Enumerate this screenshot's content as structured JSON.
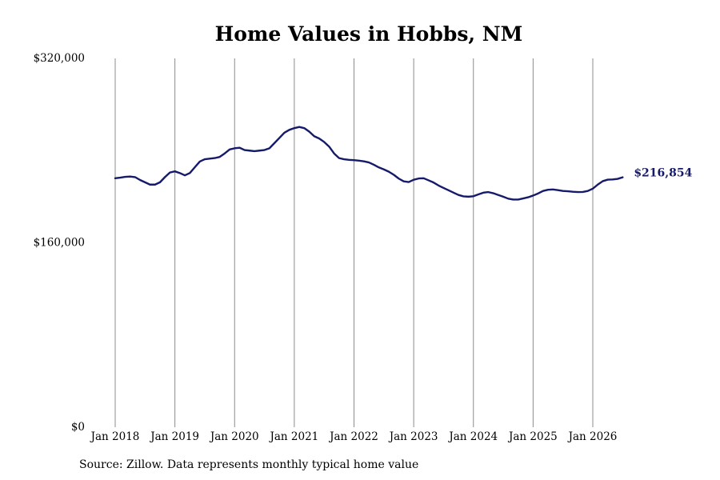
{
  "chart_data": {
    "type": "line",
    "title": "Home Values in Hobbs, NM",
    "source": "Source: Zillow. Data represents monthly typical home value",
    "ylim": [
      0,
      320000
    ],
    "yticks": [
      {
        "value": 0,
        "label": "$0"
      },
      {
        "value": 160000,
        "label": "$160,000"
      },
      {
        "value": 320000,
        "label": "$320,000"
      }
    ],
    "xticks": [
      {
        "t": 2018.0,
        "label": "Jan 2018"
      },
      {
        "t": 2019.0,
        "label": "Jan 2019"
      },
      {
        "t": 2020.0,
        "label": "Jan 2020"
      },
      {
        "t": 2021.0,
        "label": "Jan 2021"
      },
      {
        "t": 2022.0,
        "label": "Jan 2022"
      },
      {
        "t": 2023.0,
        "label": "Jan 2023"
      },
      {
        "t": 2024.0,
        "label": "Jan 2024"
      },
      {
        "t": 2025.0,
        "label": "Jan 2025"
      },
      {
        "t": 2026.0,
        "label": "Jan 2026"
      }
    ],
    "grid": "vertical",
    "line_color": "#151a6b",
    "end_label": "$216,854",
    "series": [
      {
        "x": [
          2018.0,
          2018.083,
          2018.167,
          2018.25,
          2018.333,
          2018.417,
          2018.5,
          2018.583,
          2018.667,
          2018.75,
          2018.833,
          2018.917,
          2019.0,
          2019.083,
          2019.167,
          2019.25,
          2019.333,
          2019.417,
          2019.5,
          2019.583,
          2019.667,
          2019.75,
          2019.833,
          2019.917,
          2020.0,
          2020.083,
          2020.167,
          2020.25,
          2020.333,
          2020.417,
          2020.5,
          2020.583,
          2020.667,
          2020.75,
          2020.833,
          2020.917,
          2021.0,
          2021.083,
          2021.167,
          2021.25,
          2021.333,
          2021.417,
          2021.5,
          2021.583,
          2021.667,
          2021.75,
          2021.833,
          2021.917,
          2022.0,
          2022.083,
          2022.167,
          2022.25,
          2022.333,
          2022.417,
          2022.5,
          2022.583,
          2022.667,
          2022.75,
          2022.833,
          2022.917,
          2023.0,
          2023.083,
          2023.167,
          2023.25,
          2023.333,
          2023.417,
          2023.5,
          2023.583,
          2023.667,
          2023.75,
          2023.833,
          2023.917,
          2024.0,
          2024.083,
          2024.167,
          2024.25,
          2024.333,
          2024.417,
          2024.5,
          2024.583,
          2024.667,
          2024.75,
          2024.833,
          2024.917,
          2025.0,
          2025.083,
          2025.167,
          2025.25,
          2025.333,
          2025.417,
          2025.5,
          2025.583,
          2025.667,
          2025.75,
          2025.833,
          2025.917,
          2026.0,
          2026.083,
          2026.167,
          2026.25,
          2026.333,
          2026.417,
          2026.5
        ],
        "values": [
          216000,
          216500,
          217200,
          217500,
          217000,
          214500,
          212500,
          210500,
          210500,
          212500,
          217000,
          221000,
          222000,
          220500,
          218500,
          220500,
          225500,
          230500,
          232500,
          233000,
          233500,
          234500,
          237500,
          241000,
          242000,
          242500,
          240500,
          240000,
          239500,
          240000,
          240500,
          242000,
          246500,
          251000,
          255500,
          258000,
          259500,
          260500,
          259500,
          256500,
          252500,
          250500,
          247500,
          243500,
          237500,
          233500,
          232500,
          232000,
          231700,
          231300,
          230700,
          229700,
          227700,
          225400,
          223700,
          221700,
          219000,
          215700,
          213300,
          212700,
          214700,
          215800,
          216000,
          214200,
          212300,
          209700,
          207600,
          205600,
          203500,
          201500,
          200300,
          200000,
          200400,
          202000,
          203500,
          204000,
          203000,
          201500,
          200000,
          198300,
          197500,
          197500,
          198500,
          199500,
          201000,
          202800,
          205000,
          206000,
          206300,
          205700,
          205000,
          204700,
          204300,
          204000,
          204100,
          205000,
          207000,
          210500,
          213500,
          214800,
          215000,
          215500,
          216854
        ]
      }
    ]
  }
}
